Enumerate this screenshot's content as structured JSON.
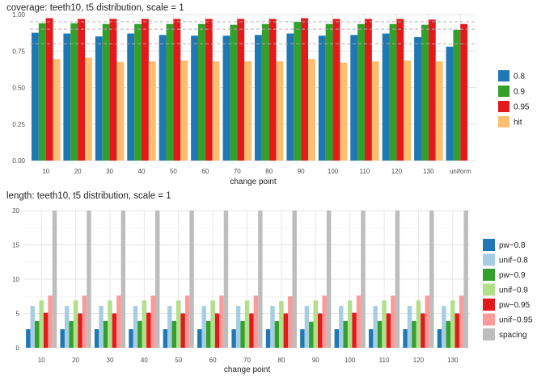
{
  "chart_data": [
    {
      "type": "bar",
      "title": "coverage: teeth10, t5 distribution, scale = 1",
      "xlabel": "change point",
      "ylabel": "",
      "ylim": [
        0,
        1.0
      ],
      "yticks": [
        "0.00",
        "0.25",
        "0.50",
        "0.75",
        "1.00"
      ],
      "reference_lines": [
        0.8,
        0.9,
        0.95
      ],
      "legend_position": "right",
      "grid": true,
      "categories": [
        "10",
        "20",
        "30",
        "40",
        "50",
        "60",
        "70",
        "80",
        "90",
        "100",
        "110",
        "120",
        "130",
        "uniform"
      ],
      "series": [
        {
          "name": "0.8",
          "color": "#1f78b4",
          "values": [
            0.875,
            0.87,
            0.85,
            0.87,
            0.86,
            0.855,
            0.855,
            0.86,
            0.87,
            0.855,
            0.86,
            0.87,
            0.845,
            0.78
          ]
        },
        {
          "name": "0.9",
          "color": "#33a02c",
          "values": [
            0.94,
            0.94,
            0.935,
            0.935,
            0.935,
            0.935,
            0.93,
            0.935,
            0.95,
            0.935,
            0.935,
            0.935,
            0.93,
            0.895
          ]
        },
        {
          "name": "0.95",
          "color": "#e31a1c",
          "values": [
            0.975,
            0.97,
            0.97,
            0.97,
            0.97,
            0.97,
            0.97,
            0.97,
            0.975,
            0.97,
            0.97,
            0.97,
            0.965,
            0.935
          ]
        },
        {
          "name": "hit",
          "color": "#fdbf6f",
          "values": [
            0.695,
            0.705,
            0.675,
            0.68,
            0.685,
            0.68,
            0.68,
            0.68,
            0.695,
            0.67,
            0.68,
            0.685,
            0.68,
            0.0
          ]
        }
      ]
    },
    {
      "type": "bar",
      "title": "length: teeth10, t5 distribution, scale = 1",
      "xlabel": "change point",
      "ylabel": "",
      "ylim": [
        0,
        20
      ],
      "yticks": [
        "0",
        "5",
        "10",
        "15",
        "20"
      ],
      "legend_position": "right",
      "grid": true,
      "categories": [
        "10",
        "20",
        "30",
        "40",
        "50",
        "60",
        "70",
        "80",
        "90",
        "100",
        "110",
        "120",
        "130"
      ],
      "series": [
        {
          "name": "pw−0.8",
          "color": "#1f78b4",
          "values": [
            2.7,
            2.7,
            2.7,
            2.7,
            2.7,
            2.7,
            2.7,
            2.7,
            2.7,
            2.7,
            2.7,
            2.7,
            2.7
          ]
        },
        {
          "name": "unif−0.8",
          "color": "#a6cee3",
          "values": [
            6.1,
            6.1,
            6.1,
            6.1,
            6.1,
            6.1,
            6.1,
            6.1,
            6.1,
            6.1,
            6.1,
            6.1,
            6.1
          ]
        },
        {
          "name": "pw−0.9",
          "color": "#33a02c",
          "values": [
            3.9,
            3.9,
            3.9,
            3.9,
            3.9,
            3.9,
            3.9,
            3.9,
            3.8,
            3.9,
            3.9,
            3.9,
            3.9
          ]
        },
        {
          "name": "unif−0.9",
          "color": "#b2df8a",
          "values": [
            6.9,
            6.9,
            6.9,
            6.9,
            6.9,
            6.9,
            6.9,
            6.8,
            6.9,
            6.9,
            6.9,
            6.9,
            6.9
          ]
        },
        {
          "name": "pw−0.95",
          "color": "#e31a1c",
          "values": [
            5.1,
            5.0,
            5.0,
            5.1,
            5.0,
            5.0,
            5.0,
            5.0,
            5.0,
            5.1,
            5.0,
            5.0,
            5.0
          ]
        },
        {
          "name": "unif−0.95",
          "color": "#fb9a99",
          "values": [
            7.6,
            7.6,
            7.6,
            7.6,
            7.6,
            7.6,
            7.6,
            7.5,
            7.6,
            7.6,
            7.6,
            7.6,
            7.6
          ]
        },
        {
          "name": "spacing",
          "color": "#bdbdbd",
          "values": [
            20,
            20,
            20,
            20,
            20,
            20,
            20,
            20,
            20,
            20,
            20,
            20,
            20
          ]
        }
      ]
    }
  ]
}
